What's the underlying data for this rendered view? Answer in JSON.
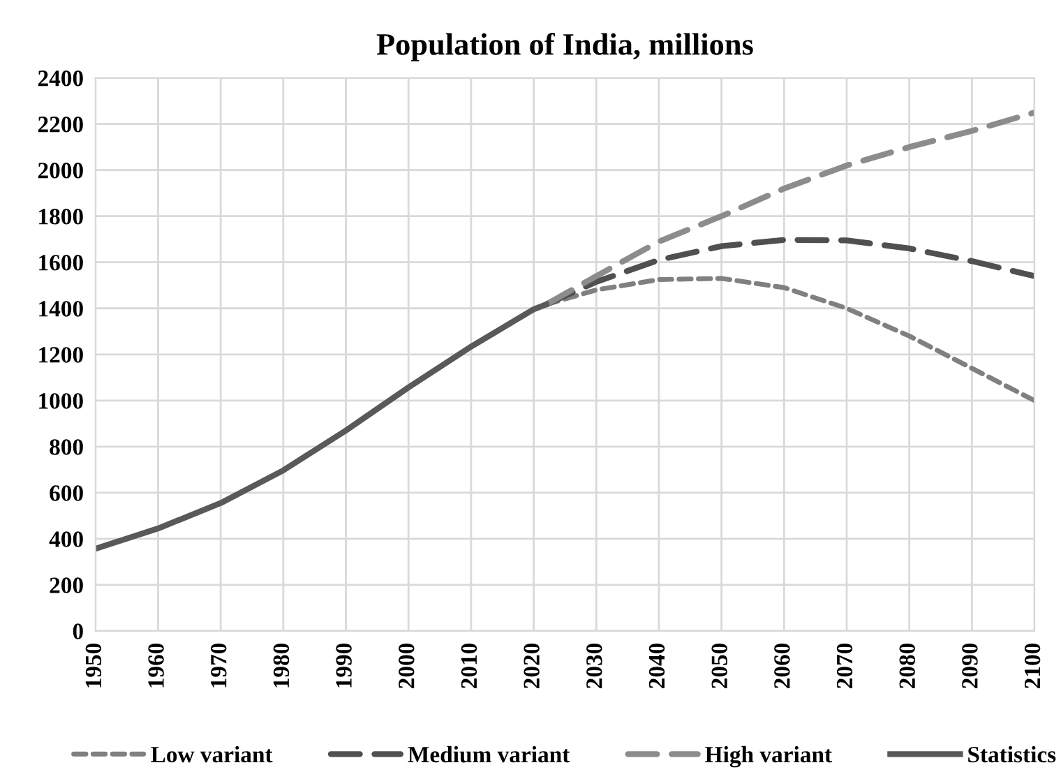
{
  "chart_data": {
    "type": "line",
    "title": "Population of India, millions",
    "xlim": [
      1950,
      2100
    ],
    "xticks": [
      1950,
      1960,
      1970,
      1980,
      1990,
      2000,
      2010,
      2020,
      2030,
      2040,
      2050,
      2060,
      2070,
      2080,
      2090,
      2100
    ],
    "ylim": [
      0,
      2400
    ],
    "yticks": [
      0,
      200,
      400,
      600,
      800,
      1000,
      1200,
      1400,
      1600,
      1800,
      2000,
      2200,
      2400
    ],
    "grid": true,
    "legend": "bottom",
    "series": [
      {
        "name": "Low variant",
        "color": "#808080",
        "line_style": "dotted",
        "x": [
          2022,
          2030,
          2040,
          2050,
          2060,
          2070,
          2080,
          2090,
          2100
        ],
        "values": [
          1417,
          1480,
          1525,
          1530,
          1490,
          1400,
          1280,
          1140,
          1000
        ]
      },
      {
        "name": "Medium variant",
        "color": "#505050",
        "line_style": "dashed",
        "x": [
          2022,
          2030,
          2040,
          2050,
          2060,
          2070,
          2080,
          2090,
          2100
        ],
        "values": [
          1417,
          1515,
          1610,
          1670,
          1697,
          1695,
          1660,
          1605,
          1540
        ]
      },
      {
        "name": "High variant",
        "color": "#8c8c8c",
        "line_style": "dashed",
        "x": [
          2022,
          2030,
          2040,
          2050,
          2060,
          2070,
          2080,
          2090,
          2100
        ],
        "values": [
          1417,
          1540,
          1690,
          1800,
          1920,
          2020,
          2100,
          2170,
          2250
        ]
      },
      {
        "name": "Statistics",
        "color": "#595959",
        "line_style": "solid",
        "x": [
          1950,
          1960,
          1970,
          1980,
          1990,
          2000,
          2010,
          2020,
          2022
        ],
        "values": [
          357,
          445,
          555,
          697,
          870,
          1057,
          1234,
          1396,
          1417
        ]
      }
    ]
  }
}
